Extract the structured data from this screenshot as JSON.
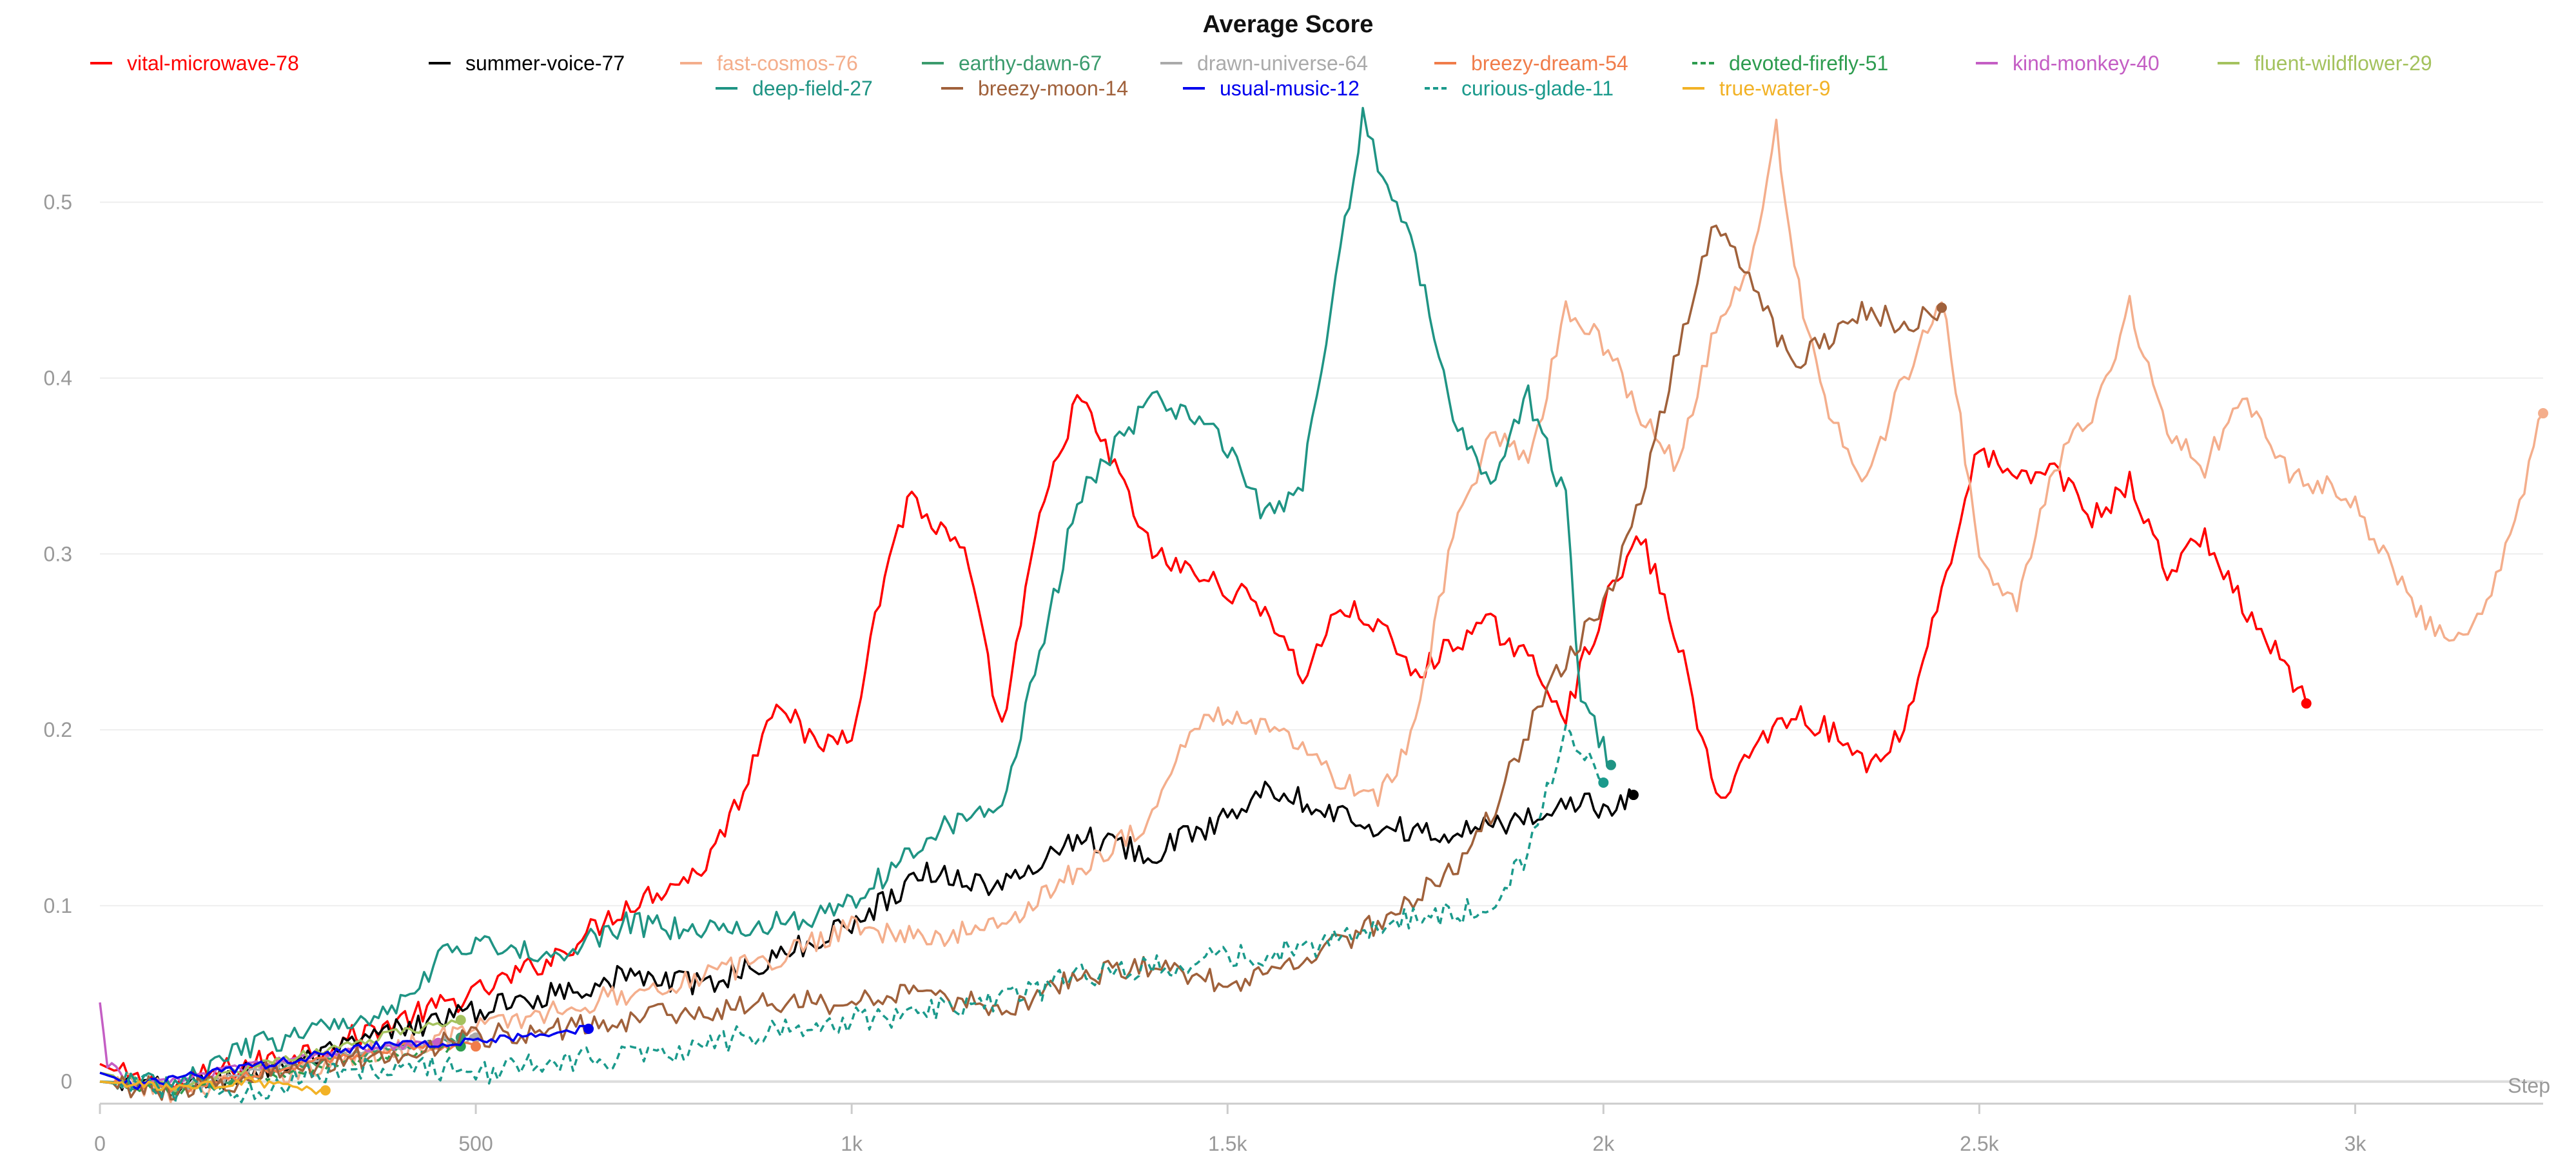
{
  "chart_data": {
    "type": "line",
    "title": "Average Score",
    "xlabel": "Step",
    "ylabel": "",
    "xlim": [
      0,
      3250
    ],
    "ylim": [
      -0.01,
      0.56
    ],
    "grid": true,
    "legend_position": "top",
    "x_ticks": [
      {
        "value": 0,
        "label": "0"
      },
      {
        "value": 500,
        "label": "500"
      },
      {
        "value": 1000,
        "label": "1k"
      },
      {
        "value": 1500,
        "label": "1.5k"
      },
      {
        "value": 2000,
        "label": "2k"
      },
      {
        "value": 2500,
        "label": "2.5k"
      },
      {
        "value": 3000,
        "label": "3k"
      }
    ],
    "y_ticks": [
      {
        "value": 0,
        "label": "0"
      },
      {
        "value": 0.1,
        "label": "0.1"
      },
      {
        "value": 0.2,
        "label": "0.2"
      },
      {
        "value": 0.3,
        "label": "0.3"
      },
      {
        "value": 0.4,
        "label": "0.4"
      },
      {
        "value": 0.5,
        "label": "0.5"
      }
    ],
    "series": [
      {
        "name": "vital-microwave-78",
        "color": "#ff0000",
        "dashed": false,
        "points": [
          [
            0,
            0.01
          ],
          [
            50,
            0.0
          ],
          [
            100,
            -0.003
          ],
          [
            150,
            0.005
          ],
          [
            200,
            0.01
          ],
          [
            300,
            0.02
          ],
          [
            400,
            0.035
          ],
          [
            500,
            0.05
          ],
          [
            600,
            0.07
          ],
          [
            700,
            0.1
          ],
          [
            800,
            0.12
          ],
          [
            850,
            0.16
          ],
          [
            900,
            0.22
          ],
          [
            950,
            0.19
          ],
          [
            1000,
            0.2
          ],
          [
            1050,
            0.3
          ],
          [
            1080,
            0.335
          ],
          [
            1100,
            0.32
          ],
          [
            1150,
            0.3
          ],
          [
            1200,
            0.2
          ],
          [
            1250,
            0.32
          ],
          [
            1300,
            0.39
          ],
          [
            1350,
            0.35
          ],
          [
            1400,
            0.3
          ],
          [
            1450,
            0.29
          ],
          [
            1500,
            0.28
          ],
          [
            1550,
            0.27
          ],
          [
            1600,
            0.23
          ],
          [
            1650,
            0.27
          ],
          [
            1700,
            0.26
          ],
          [
            1750,
            0.23
          ],
          [
            1800,
            0.25
          ],
          [
            1850,
            0.26
          ],
          [
            1900,
            0.24
          ],
          [
            1950,
            0.21
          ],
          [
            2000,
            0.27
          ],
          [
            2050,
            0.31
          ],
          [
            2100,
            0.25
          ],
          [
            2150,
            0.16
          ],
          [
            2200,
            0.19
          ],
          [
            2250,
            0.21
          ],
          [
            2300,
            0.2
          ],
          [
            2350,
            0.18
          ],
          [
            2400,
            0.2
          ],
          [
            2450,
            0.28
          ],
          [
            2500,
            0.36
          ],
          [
            2550,
            0.34
          ],
          [
            2600,
            0.35
          ],
          [
            2650,
            0.32
          ],
          [
            2700,
            0.34
          ],
          [
            2750,
            0.29
          ],
          [
            2800,
            0.31
          ],
          [
            2850,
            0.27
          ],
          [
            2900,
            0.24
          ],
          [
            2935,
            0.215
          ]
        ]
      },
      {
        "name": "summer-voice-77",
        "color": "#000000",
        "dashed": false,
        "points": [
          [
            0,
            0.0
          ],
          [
            100,
            -0.005
          ],
          [
            200,
            0.005
          ],
          [
            300,
            0.015
          ],
          [
            400,
            0.03
          ],
          [
            500,
            0.04
          ],
          [
            600,
            0.05
          ],
          [
            700,
            0.06
          ],
          [
            800,
            0.055
          ],
          [
            900,
            0.07
          ],
          [
            1000,
            0.09
          ],
          [
            1100,
            0.12
          ],
          [
            1200,
            0.11
          ],
          [
            1300,
            0.14
          ],
          [
            1400,
            0.13
          ],
          [
            1500,
            0.15
          ],
          [
            1550,
            0.17
          ],
          [
            1600,
            0.16
          ],
          [
            1700,
            0.145
          ],
          [
            1800,
            0.14
          ],
          [
            1900,
            0.15
          ],
          [
            1950,
            0.16
          ],
          [
            2000,
            0.155
          ],
          [
            2040,
            0.163
          ]
        ]
      },
      {
        "name": "fast-cosmos-76",
        "color": "#f4ae8c",
        "dashed": false,
        "points": [
          [
            0,
            0.0
          ],
          [
            100,
            -0.005
          ],
          [
            300,
            0.01
          ],
          [
            500,
            0.03
          ],
          [
            700,
            0.05
          ],
          [
            900,
            0.07
          ],
          [
            1000,
            0.09
          ],
          [
            1100,
            0.08
          ],
          [
            1200,
            0.09
          ],
          [
            1300,
            0.12
          ],
          [
            1400,
            0.15
          ],
          [
            1450,
            0.2
          ],
          [
            1500,
            0.21
          ],
          [
            1550,
            0.2
          ],
          [
            1600,
            0.19
          ],
          [
            1650,
            0.17
          ],
          [
            1700,
            0.16
          ],
          [
            1750,
            0.2
          ],
          [
            1800,
            0.31
          ],
          [
            1850,
            0.37
          ],
          [
            1900,
            0.35
          ],
          [
            1950,
            0.44
          ],
          [
            2000,
            0.42
          ],
          [
            2050,
            0.38
          ],
          [
            2100,
            0.35
          ],
          [
            2150,
            0.43
          ],
          [
            2200,
            0.47
          ],
          [
            2230,
            0.54
          ],
          [
            2260,
            0.45
          ],
          [
            2300,
            0.38
          ],
          [
            2350,
            0.34
          ],
          [
            2400,
            0.4
          ],
          [
            2450,
            0.45
          ],
          [
            2500,
            0.3
          ],
          [
            2550,
            0.27
          ],
          [
            2600,
            0.35
          ],
          [
            2650,
            0.38
          ],
          [
            2700,
            0.44
          ],
          [
            2750,
            0.37
          ],
          [
            2800,
            0.35
          ],
          [
            2850,
            0.39
          ],
          [
            2900,
            0.35
          ],
          [
            2950,
            0.34
          ],
          [
            3000,
            0.33
          ],
          [
            3050,
            0.29
          ],
          [
            3100,
            0.26
          ],
          [
            3150,
            0.25
          ],
          [
            3200,
            0.3
          ],
          [
            3250,
            0.38
          ]
        ]
      },
      {
        "name": "earthy-dawn-67",
        "color": "#3b9b6d",
        "dashed": false,
        "points": [
          [
            0,
            0.0
          ],
          [
            100,
            -0.005
          ],
          [
            200,
            0.003
          ],
          [
            300,
            0.012
          ],
          [
            400,
            0.02
          ],
          [
            480,
            0.025
          ]
        ]
      },
      {
        "name": "drawn-universe-64",
        "color": "#aaaaaa",
        "dashed": false,
        "points": [
          [
            0,
            0.0
          ],
          [
            100,
            -0.005
          ],
          [
            200,
            0.005
          ],
          [
            300,
            0.015
          ],
          [
            400,
            0.02
          ],
          [
            500,
            0.025
          ]
        ]
      },
      {
        "name": "breezy-dream-54",
        "color": "#f07c4a",
        "dashed": false,
        "points": [
          [
            0,
            0.0
          ],
          [
            100,
            -0.005
          ],
          [
            200,
            0.004
          ],
          [
            300,
            0.012
          ],
          [
            400,
            0.02
          ],
          [
            500,
            0.02
          ]
        ]
      },
      {
        "name": "devoted-firefly-51",
        "color": "#2d9c4f",
        "dashed": true,
        "points": [
          [
            0,
            0.0
          ],
          [
            100,
            -0.006
          ],
          [
            200,
            0.0
          ],
          [
            300,
            0.008
          ],
          [
            400,
            0.015
          ],
          [
            480,
            0.02
          ]
        ]
      },
      {
        "name": "kind-monkey-40",
        "color": "#c45ec4",
        "dashed": false,
        "points": [
          [
            0,
            0.045
          ],
          [
            10,
            0.01
          ],
          [
            50,
            -0.003
          ],
          [
            150,
            0.005
          ],
          [
            250,
            0.012
          ],
          [
            350,
            0.018
          ],
          [
            450,
            0.022
          ]
        ]
      },
      {
        "name": "fluent-wildflower-29",
        "color": "#a4c25e",
        "dashed": false,
        "points": [
          [
            0,
            0.005
          ],
          [
            100,
            -0.004
          ],
          [
            200,
            0.008
          ],
          [
            300,
            0.018
          ],
          [
            400,
            0.028
          ],
          [
            480,
            0.035
          ]
        ]
      },
      {
        "name": "deep-field-27",
        "color": "#1f9484",
        "dashed": false,
        "points": [
          [
            0,
            0.0
          ],
          [
            100,
            -0.002
          ],
          [
            200,
            0.02
          ],
          [
            300,
            0.03
          ],
          [
            400,
            0.045
          ],
          [
            450,
            0.07
          ],
          [
            500,
            0.08
          ],
          [
            600,
            0.07
          ],
          [
            700,
            0.09
          ],
          [
            800,
            0.085
          ],
          [
            900,
            0.09
          ],
          [
            1000,
            0.1
          ],
          [
            1100,
            0.14
          ],
          [
            1200,
            0.16
          ],
          [
            1250,
            0.24
          ],
          [
            1300,
            0.33
          ],
          [
            1350,
            0.36
          ],
          [
            1400,
            0.39
          ],
          [
            1450,
            0.38
          ],
          [
            1500,
            0.36
          ],
          [
            1550,
            0.32
          ],
          [
            1600,
            0.34
          ],
          [
            1650,
            0.47
          ],
          [
            1680,
            0.55
          ],
          [
            1700,
            0.52
          ],
          [
            1750,
            0.47
          ],
          [
            1800,
            0.38
          ],
          [
            1850,
            0.34
          ],
          [
            1900,
            0.39
          ],
          [
            1950,
            0.33
          ],
          [
            1970,
            0.22
          ],
          [
            2000,
            0.19
          ],
          [
            2010,
            0.18
          ]
        ]
      },
      {
        "name": "breezy-moon-14",
        "color": "#a0613b",
        "dashed": false,
        "points": [
          [
            0,
            0.0
          ],
          [
            100,
            -0.005
          ],
          [
            300,
            0.01
          ],
          [
            500,
            0.025
          ],
          [
            700,
            0.035
          ],
          [
            900,
            0.045
          ],
          [
            1000,
            0.045
          ],
          [
            1100,
            0.05
          ],
          [
            1200,
            0.04
          ],
          [
            1300,
            0.06
          ],
          [
            1400,
            0.065
          ],
          [
            1500,
            0.055
          ],
          [
            1600,
            0.07
          ],
          [
            1700,
            0.09
          ],
          [
            1800,
            0.12
          ],
          [
            1850,
            0.15
          ],
          [
            1900,
            0.2
          ],
          [
            1950,
            0.24
          ],
          [
            2000,
            0.27
          ],
          [
            2050,
            0.33
          ],
          [
            2100,
            0.42
          ],
          [
            2150,
            0.49
          ],
          [
            2200,
            0.45
          ],
          [
            2250,
            0.41
          ],
          [
            2300,
            0.42
          ],
          [
            2350,
            0.44
          ],
          [
            2400,
            0.43
          ],
          [
            2450,
            0.44
          ]
        ]
      },
      {
        "name": "usual-music-12",
        "color": "#0000ee",
        "dashed": false,
        "points": [
          [
            0,
            0.005
          ],
          [
            50,
            -0.002
          ],
          [
            150,
            0.005
          ],
          [
            250,
            0.012
          ],
          [
            350,
            0.02
          ],
          [
            450,
            0.022
          ],
          [
            550,
            0.025
          ],
          [
            650,
            0.03
          ]
        ]
      },
      {
        "name": "curious-glade-11",
        "color": "#1b9a8c",
        "dashed": true,
        "points": [
          [
            0,
            0.0
          ],
          [
            100,
            -0.005
          ],
          [
            200,
            -0.005
          ],
          [
            300,
            0.005
          ],
          [
            400,
            0.01
          ],
          [
            500,
            0.005
          ],
          [
            600,
            0.01
          ],
          [
            700,
            0.015
          ],
          [
            800,
            0.02
          ],
          [
            900,
            0.03
          ],
          [
            1000,
            0.035
          ],
          [
            1100,
            0.04
          ],
          [
            1200,
            0.045
          ],
          [
            1300,
            0.06
          ],
          [
            1400,
            0.065
          ],
          [
            1500,
            0.07
          ],
          [
            1600,
            0.075
          ],
          [
            1700,
            0.09
          ],
          [
            1800,
            0.095
          ],
          [
            1850,
            0.1
          ],
          [
            1900,
            0.13
          ],
          [
            1950,
            0.2
          ],
          [
            2000,
            0.17
          ]
        ]
      },
      {
        "name": "true-water-9",
        "color": "#f2b226",
        "dashed": false,
        "points": [
          [
            0,
            0.0
          ],
          [
            100,
            -0.004
          ],
          [
            200,
            0.0
          ],
          [
            250,
            -0.003
          ],
          [
            300,
            -0.005
          ]
        ]
      }
    ]
  }
}
